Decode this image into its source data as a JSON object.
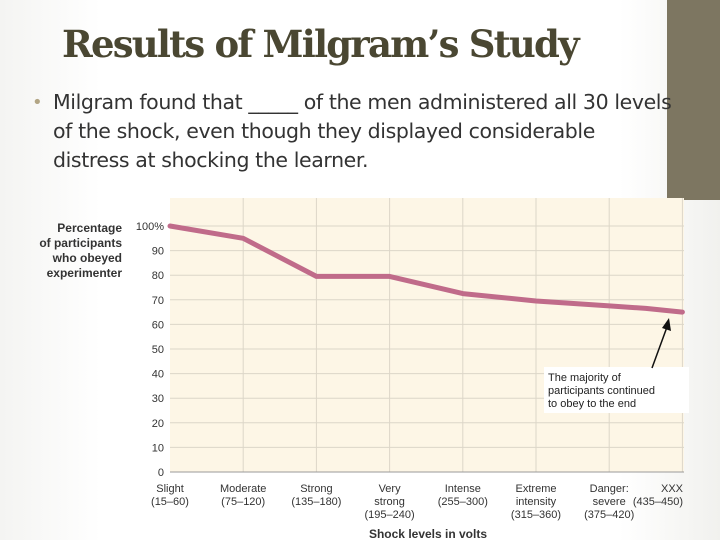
{
  "slide": {
    "title": "Results of Milgram’s Study",
    "bullet": "Milgram found that _____ of the men administered all 30 levels of the shock, even though they displayed considerable distress at shocking the learner."
  },
  "colors": {
    "accent_bar": "#7d7661",
    "title": "#4a4732",
    "bullet_dot": "#b2a584",
    "line": "#c06b8a",
    "plot_bg": "#fdf6e6",
    "grid": "#dcd6c8"
  },
  "chart_data": {
    "type": "line",
    "ylabel_lines": [
      "Percentage",
      "of participants",
      "who obeyed",
      "experimenter"
    ],
    "xlabel": "Shock levels in volts",
    "ylim": [
      0,
      100
    ],
    "yticks": [
      "0",
      "10",
      "20",
      "30",
      "40",
      "50",
      "60",
      "70",
      "80",
      "90",
      "100%"
    ],
    "grid": true,
    "categories": [
      [
        "Slight",
        "(15–60)"
      ],
      [
        "Moderate",
        "(75–120)"
      ],
      [
        "Strong",
        "(135–180)"
      ],
      [
        "Very",
        "strong",
        "(195–240)"
      ],
      [
        "Intense",
        "(255–300)"
      ],
      [
        "Extreme",
        "intensity",
        "(315–360)"
      ],
      [
        "Danger:",
        "severe",
        "(375–420)"
      ],
      [
        "XXX",
        "(435–450)"
      ]
    ],
    "series": [
      {
        "x": [
          0,
          1,
          2,
          3,
          4,
          5,
          6,
          6.5,
          7
        ],
        "values": [
          100,
          95,
          79.5,
          79.5,
          72.5,
          69.5,
          67.5,
          66.5,
          65
        ]
      }
    ],
    "annotation": {
      "lines": [
        "The majority of",
        "participants continued",
        "to obey to the end"
      ]
    }
  }
}
